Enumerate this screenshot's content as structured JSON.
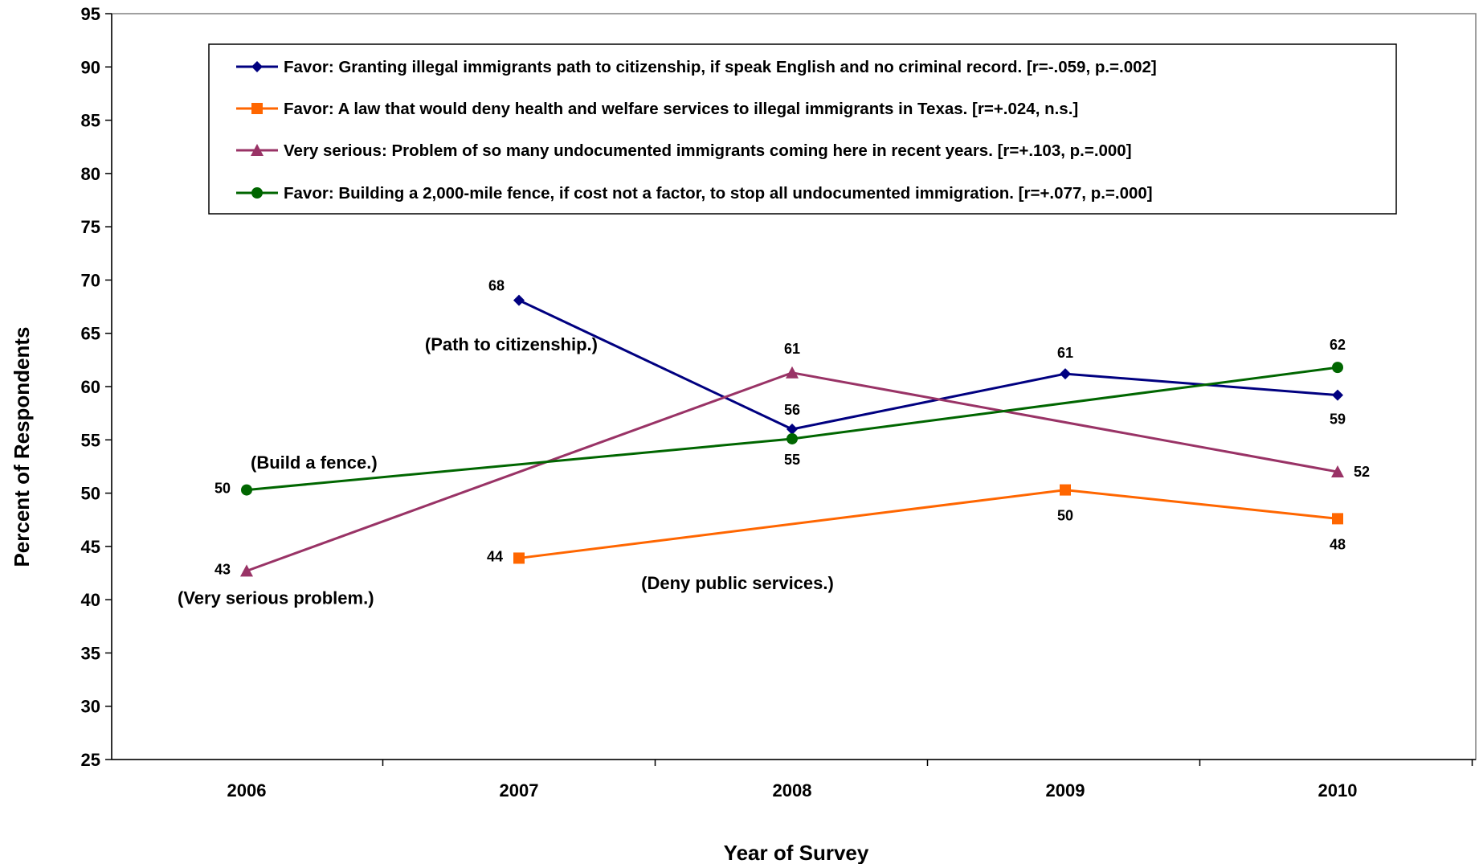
{
  "chart_data": {
    "type": "line",
    "xlabel": "Year of Survey",
    "ylabel": "Percent of Respondents",
    "categories": [
      "2006",
      "2007",
      "2008",
      "2009",
      "2010"
    ],
    "ylim": [
      25,
      95
    ],
    "yticks": [
      25,
      30,
      35,
      40,
      45,
      50,
      55,
      60,
      65,
      70,
      75,
      80,
      85,
      90,
      95
    ],
    "grid": false,
    "legend_position": "top",
    "series": [
      {
        "name": "Favor: Granting illegal immigrants path to citizenship, if speak English and no criminal record. [r=-.059, p.=.002]",
        "color": "#000080",
        "marker": "diamond",
        "values": [
          null,
          68.1,
          56.0,
          61.2,
          59.2
        ],
        "labels": [
          "",
          "68",
          "56",
          "61",
          "59"
        ]
      },
      {
        "name": "Favor: A law that would deny health and welfare services to illegal immigrants in Texas. [r=+.024, n.s.]",
        "color": "#FF6600",
        "marker": "square",
        "values": [
          null,
          43.9,
          null,
          50.3,
          47.6
        ],
        "labels": [
          "",
          "44",
          "",
          "50",
          "48"
        ]
      },
      {
        "name": "Very serious: Problem of so many undocumented immigrants coming here in recent years. [r=+.103, p.=.000]",
        "color": "#993366",
        "marker": "triangle",
        "values": [
          42.7,
          null,
          61.3,
          null,
          52.0
        ],
        "labels": [
          "43",
          "",
          "61",
          "",
          "52"
        ]
      },
      {
        "name": "Favor: Building a 2,000-mile fence, if cost not a factor, to stop all undocumented immigration. [r=+.077, p.=.000]",
        "color": "#006600",
        "marker": "circle",
        "values": [
          50.3,
          null,
          55.1,
          null,
          61.8
        ],
        "labels": [
          "50",
          "",
          "55",
          "",
          "62"
        ]
      }
    ],
    "annotations": [
      {
        "text": "(Path to citizenship.)",
        "x": "2007",
        "y": 64.0
      },
      {
        "text": "(Build a fence.)",
        "x": "2006",
        "y": 52.9
      },
      {
        "text": "(Very serious problem.)",
        "x": "2006",
        "y": 40.2
      },
      {
        "text": "(Deny public services.)",
        "x": "2008",
        "y": 41.6
      }
    ]
  }
}
